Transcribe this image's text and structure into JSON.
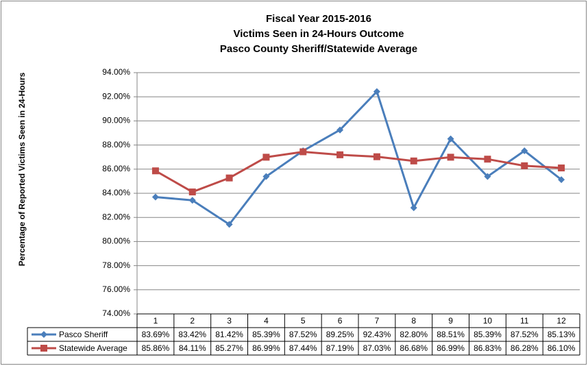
{
  "chart_data": {
    "type": "line",
    "title": [
      "Fiscal Year 2015-2016",
      "Victims Seen in 24-Hours Outcome",
      "Pasco County Sheriff/Statewide Average"
    ],
    "y_label": "Percentage of Reported Victims Seen in 24-Hours",
    "categories": [
      "1",
      "2",
      "3",
      "4",
      "5",
      "6",
      "7",
      "8",
      "9",
      "10",
      "11",
      "12"
    ],
    "series": [
      {
        "name": "Pasco Sheriff",
        "color": "#4a7ebb",
        "marker": "diamond",
        "values": [
          83.69,
          83.42,
          81.42,
          85.39,
          87.52,
          89.25,
          92.43,
          82.8,
          88.51,
          85.39,
          87.52,
          85.13
        ],
        "value_labels": [
          "83.69%",
          "83.42%",
          "81.42%",
          "85.39%",
          "87.52%",
          "89.25%",
          "92.43%",
          "82.80%",
          "88.51%",
          "85.39%",
          "87.52%",
          "85.13%"
        ]
      },
      {
        "name": "Statewide Average",
        "color": "#be4b48",
        "marker": "square",
        "values": [
          85.86,
          84.11,
          85.27,
          86.99,
          87.44,
          87.19,
          87.03,
          86.68,
          86.99,
          86.83,
          86.28,
          86.1
        ],
        "value_labels": [
          "85.86%",
          "84.11%",
          "85.27%",
          "86.99%",
          "87.44%",
          "87.19%",
          "87.03%",
          "86.68%",
          "86.99%",
          "86.83%",
          "86.28%",
          "86.10%"
        ]
      }
    ],
    "ylim": [
      74,
      94
    ],
    "yticks": [
      {
        "value": 74,
        "label": "74.00%"
      },
      {
        "value": 76,
        "label": "76.00%"
      },
      {
        "value": 78,
        "label": "78.00%"
      },
      {
        "value": 80,
        "label": "80.00%"
      },
      {
        "value": 82,
        "label": "82.00%"
      },
      {
        "value": 84,
        "label": "84.00%"
      },
      {
        "value": 86,
        "label": "86.00%"
      },
      {
        "value": 88,
        "label": "88.00%"
      },
      {
        "value": 90,
        "label": "90.00%"
      },
      {
        "value": 92,
        "label": "92.00%"
      },
      {
        "value": 94,
        "label": "94.00%"
      }
    ],
    "grid": true
  }
}
